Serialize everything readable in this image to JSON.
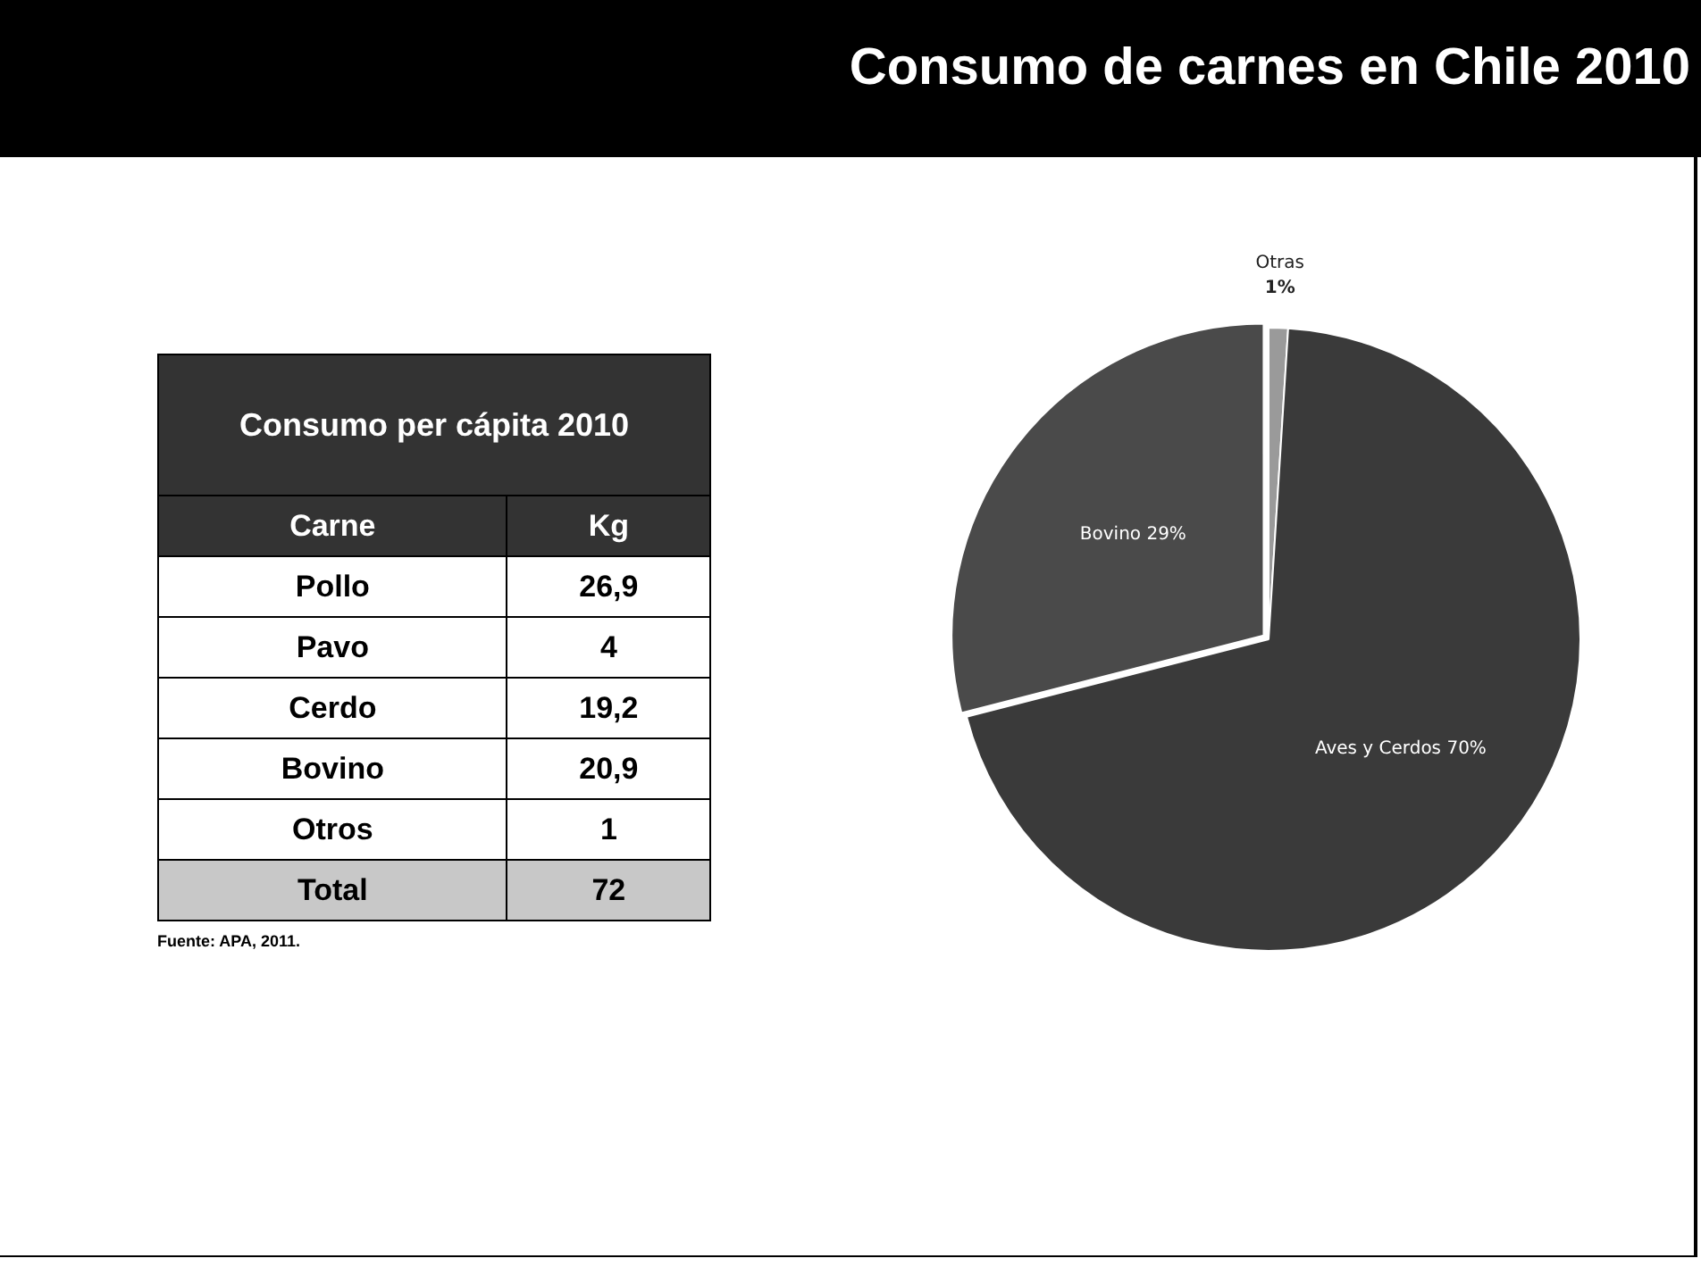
{
  "chart_data": [
    {
      "type": "other",
      "title": "Consumo per cápita 2010",
      "xlabel": "Carne",
      "ylabel": "Kg",
      "categories": [
        "Pollo",
        "Pavo",
        "Cerdo",
        "Bovino",
        "Otros",
        "Total"
      ],
      "values": [
        26.9,
        4,
        19.2,
        20.9,
        1,
        72
      ],
      "value_labels": [
        "26,9",
        "4",
        "19,2",
        "20,9",
        "1",
        "72"
      ],
      "annotations": [
        "Fuente: APA, 2011."
      ]
    },
    {
      "type": "pie",
      "title": "Consumo de carnes en Chile 2010",
      "categories": [
        "Otras",
        "Aves y Cerdos",
        "Bovino"
      ],
      "values": [
        1,
        70,
        29
      ],
      "colors": [
        "#9a9a9a",
        "#3a3a3a",
        "#4a4a4a"
      ],
      "value_labels": [
        "1%",
        "70%",
        "29%"
      ],
      "legend": false
    }
  ]
}
